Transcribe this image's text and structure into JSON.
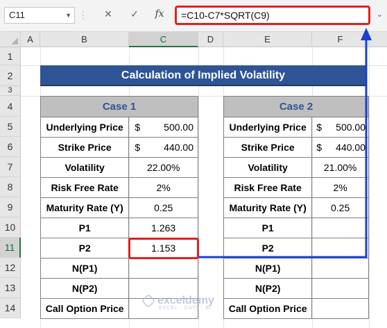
{
  "name_box": "C11",
  "formula": "=C10-C7*SQRT(C9)",
  "fx_label": "fx",
  "columns": [
    "A",
    "B",
    "C",
    "D",
    "E",
    "F"
  ],
  "rows": [
    "1",
    "2",
    "3",
    "4",
    "5",
    "6",
    "7",
    "8",
    "9",
    "10",
    "11",
    "12",
    "13",
    "14"
  ],
  "title": "Calculation of Implied Volatility",
  "case1": {
    "header": "Case 1",
    "underlying_label": "Underlying Price",
    "underlying_cur": "$",
    "underlying_val": "500.00",
    "strike_label": "Strike Price",
    "strike_cur": "$",
    "strike_val": "440.00",
    "vol_label": "Volatility",
    "vol_val": "22.00%",
    "rf_label": "Risk Free Rate",
    "rf_val": "2%",
    "mat_label": "Maturity Rate (Y)",
    "mat_val": "0.25",
    "p1_label": "P1",
    "p1_val": "1.263",
    "p2_label": "P2",
    "p2_val": "1.153",
    "np1_label": "N(P1)",
    "np1_val": "",
    "np2_label": "N(P2)",
    "np2_val": "",
    "call_label": "Call Option Price",
    "call_val": ""
  },
  "case2": {
    "header": "Case 2",
    "underlying_label": "Underlying Price",
    "underlying_cur": "$",
    "underlying_val": "500.00",
    "strike_label": "Strike Price",
    "strike_cur": "$",
    "strike_val": "440.00",
    "vol_label": "Volatility",
    "vol_val": "21.00%",
    "rf_label": "Risk Free Rate",
    "rf_val": "2%",
    "mat_label": "Maturity Rate (Y)",
    "mat_val": "0.25",
    "p1_label": "P1",
    "p1_val": "",
    "p2_label": "P2",
    "p2_val": "",
    "np1_label": "N(P1)",
    "np1_val": "",
    "np2_label": "N(P2)",
    "np2_val": "",
    "call_label": "Call Option Price",
    "call_val": ""
  },
  "watermark": {
    "brand": "exceldemy",
    "tagline": "EXCEL · DATA · BI"
  },
  "colors": {
    "banner": "#2f5496",
    "highlight": "#e02020",
    "arrow": "#1a3fd6",
    "header_fill": "#bfbfbf"
  }
}
